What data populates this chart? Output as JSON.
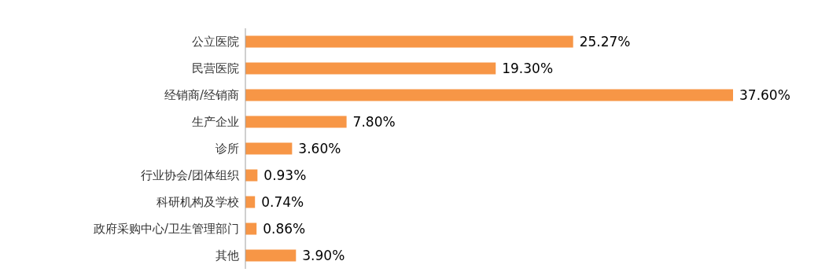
{
  "chart_data": {
    "type": "bar",
    "orientation": "horizontal",
    "categories": [
      "公立医院",
      "民营医院",
      "经销商/经销商",
      "生产企业",
      "诊所",
      "行业协会/团体组织",
      "科研机构及学校",
      "政府采购中心/卫生管理部门",
      "其他"
    ],
    "values": [
      25.27,
      19.3,
      37.6,
      7.8,
      3.6,
      0.93,
      0.74,
      0.86,
      3.9
    ],
    "value_labels": [
      "25.27%",
      "19.30%",
      "37.60%",
      "7.80%",
      "3.60%",
      "0.93%",
      "0.74%",
      "0.86%",
      "3.90%"
    ],
    "color": "#f79646",
    "grid": false,
    "legend": false
  }
}
